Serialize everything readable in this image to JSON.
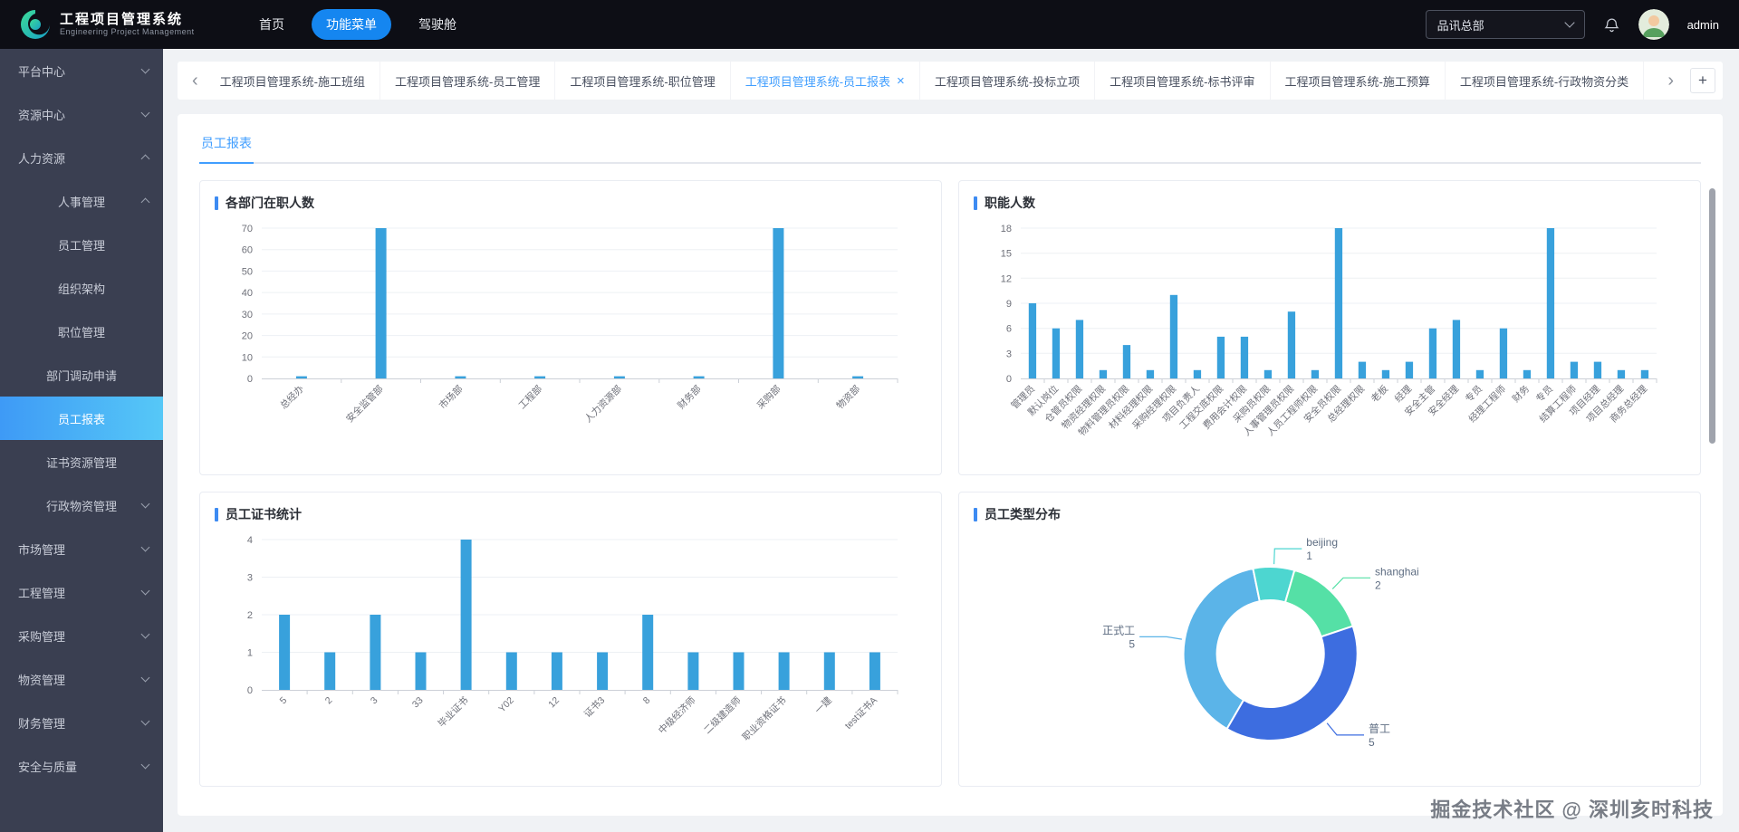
{
  "topbar": {
    "logo_title": "工程项目管理系统",
    "logo_subtitle": "Engineering Project Management",
    "nav_items": [
      {
        "label": "首页",
        "active": false
      },
      {
        "label": "功能菜单",
        "active": true
      },
      {
        "label": "驾驶舱",
        "active": false
      }
    ],
    "org_selector": "品讯总部",
    "username": "admin"
  },
  "sidebar": {
    "items": [
      {
        "label": "平台中心",
        "level": 1,
        "chevron": "down"
      },
      {
        "label": "资源中心",
        "level": 1,
        "chevron": "down"
      },
      {
        "label": "人力资源",
        "level": 1,
        "chevron": "up"
      },
      {
        "label": "人事管理",
        "level": 2,
        "chevron": "up"
      },
      {
        "label": "员工管理",
        "level": 3
      },
      {
        "label": "组织架构",
        "level": 3
      },
      {
        "label": "职位管理",
        "level": 3
      },
      {
        "label": "部门调动申请",
        "level": 3
      },
      {
        "label": "员工报表",
        "level": 3,
        "active": true
      },
      {
        "label": "证书资源管理",
        "level": 3
      },
      {
        "label": "行政物资管理",
        "level": 2,
        "chevron": "down"
      },
      {
        "label": "市场管理",
        "level": 1,
        "chevron": "down"
      },
      {
        "label": "工程管理",
        "level": 1,
        "chevron": "down"
      },
      {
        "label": "采购管理",
        "level": 1,
        "chevron": "down"
      },
      {
        "label": "物资管理",
        "level": 1,
        "chevron": "down"
      },
      {
        "label": "财务管理",
        "level": 1,
        "chevron": "down"
      },
      {
        "label": "安全与质量",
        "level": 1,
        "chevron": "down"
      }
    ]
  },
  "tabstrip": {
    "tabs": [
      {
        "label": "工程项目管理系统-施工班组",
        "active": false
      },
      {
        "label": "工程项目管理系统-员工管理",
        "active": false
      },
      {
        "label": "工程项目管理系统-职位管理",
        "active": false
      },
      {
        "label": "工程项目管理系统-员工报表",
        "active": true,
        "closable": true
      },
      {
        "label": "工程项目管理系统-投标立项",
        "active": false
      },
      {
        "label": "工程项目管理系统-标书评审",
        "active": false
      },
      {
        "label": "工程项目管理系统-施工预算",
        "active": false
      },
      {
        "label": "工程项目管理系统-行政物资分类",
        "active": false
      }
    ]
  },
  "icons": {
    "tab_scroll_left": "‹",
    "tab_scroll_right": "›",
    "tab_add": "+"
  },
  "page": {
    "tab_label": "员工报表",
    "watermark": "掘金技术社区 @ 深圳亥时科技"
  },
  "colors": {
    "accent_blue": "#409eff",
    "bar_color": "#38a1dc",
    "sidebar_active_start": "#3e9af6",
    "sidebar_active_end": "#56c8f7"
  },
  "chart_data": [
    {
      "type": "bar",
      "title": "各部门在职人数",
      "categories": [
        "总经办",
        "安全监管部",
        "市场部",
        "工程部",
        "人力资源部",
        "财务部",
        "采购部",
        "物资部"
      ],
      "values": [
        1,
        70,
        1,
        1,
        1,
        1,
        70,
        1
      ],
      "ylim": [
        0,
        70
      ],
      "ytick_step": 10,
      "xlabel": "",
      "ylabel": "",
      "grid": true
    },
    {
      "type": "bar",
      "title": "职能人数",
      "categories": [
        "管理员",
        "默认岗位",
        "仓管员权限",
        "物资经理权限",
        "物料管理员权限",
        "材料经理权限",
        "采购经理权限",
        "项目负责人",
        "工程交底权限",
        "费用会计权限",
        "采购员权限",
        "人事管理员权限",
        "人员工程师权限",
        "安全员权限",
        "总经理权限",
        "老板",
        "经理",
        "安全主管",
        "安全经理",
        "专员",
        "经理工程师",
        "财务",
        "专员",
        "结算工程师",
        "项目经理",
        "项目总经理",
        "商务总经理"
      ],
      "values": [
        9,
        6,
        7,
        1,
        4,
        1,
        10,
        1,
        5,
        5,
        1,
        8,
        1,
        18,
        2,
        1,
        2,
        6,
        7,
        1,
        6,
        1,
        18,
        2,
        2,
        1,
        1
      ],
      "ylim": [
        0,
        18
      ],
      "ytick_step": 3,
      "xlabel": "",
      "ylabel": "",
      "grid": true
    },
    {
      "type": "bar",
      "title": "员工证书统计",
      "categories": [
        "5",
        "2",
        "3",
        "33",
        "毕业证书",
        "Y02",
        "12",
        "证书3",
        "8",
        "中级经济师",
        "二级建造师",
        "职业资格证书",
        "一建",
        "test证书A"
      ],
      "values": [
        2,
        1,
        2,
        1,
        4,
        1,
        1,
        1,
        2,
        1,
        1,
        1,
        1,
        1
      ],
      "ylim": [
        0,
        4
      ],
      "ytick_step": 1,
      "xlabel": "",
      "ylabel": "",
      "grid": true
    },
    {
      "type": "pie",
      "title": "员工类型分布",
      "segments": [
        {
          "name": "正式工",
          "value": 5,
          "color": "#5bb4e8"
        },
        {
          "name": "beijing",
          "value": 1,
          "color": "#4dd6d0"
        },
        {
          "name": "shanghai",
          "value": 2,
          "color": "#55e0a6"
        },
        {
          "name": "普工",
          "value": 5,
          "color": "#3d6de0"
        }
      ],
      "start_angle": 210,
      "donut": true
    }
  ]
}
